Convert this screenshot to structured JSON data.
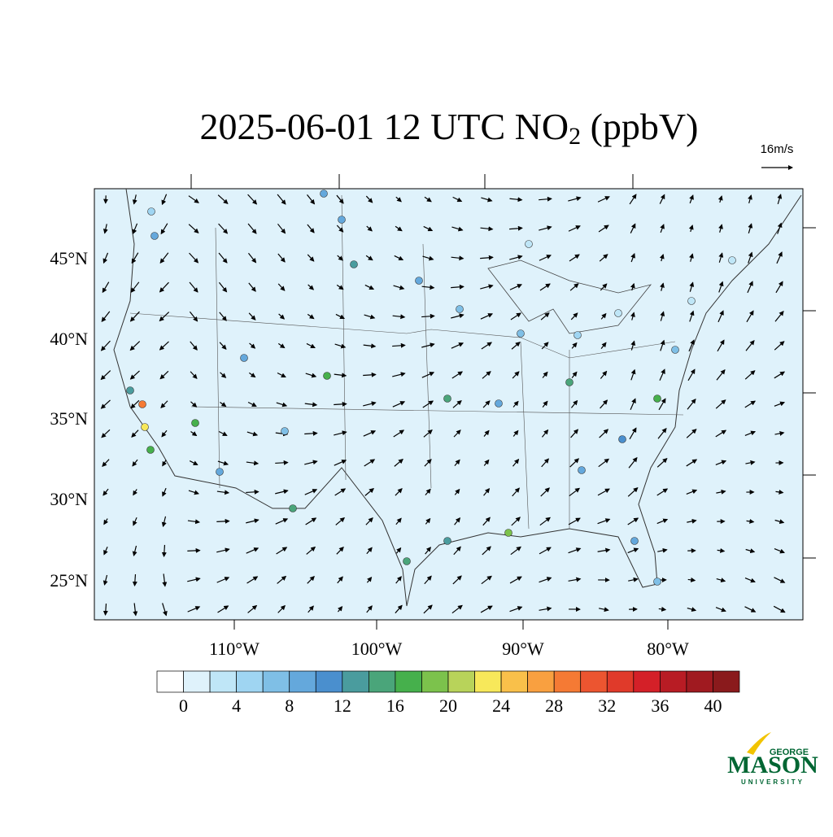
{
  "title": {
    "main": "2025-06-01 12 UTC NO",
    "subscript": "2",
    "unit": " (ppbV)"
  },
  "wind_reference": "16m/s",
  "map": {
    "lat_labels": [
      "45°N",
      "40°N",
      "35°N",
      "30°N",
      "25°N"
    ],
    "lon_labels": [
      "110°W",
      "100°W",
      "90°W",
      "80°W"
    ],
    "background": "#dff2fb"
  },
  "colorbar": {
    "lim": [
      -2,
      42
    ],
    "ticks": [
      0,
      4,
      8,
      12,
      16,
      20,
      24,
      28,
      32,
      36,
      40
    ],
    "colors": [
      "#ffffff",
      "#dff2fb",
      "#bfe6f7",
      "#9fd5f2",
      "#7fbfe6",
      "#64a8dc",
      "#4a8fce",
      "#4a9c9e",
      "#4aa57a",
      "#46b04c",
      "#7cc24c",
      "#b8d35a",
      "#f7e85a",
      "#f9c04a",
      "#f9a040",
      "#f57a34",
      "#ec5530",
      "#e03a2a",
      "#d42028",
      "#b81c24",
      "#a01a20",
      "#8a1a1c"
    ]
  },
  "logo": {
    "top": "GEORGE",
    "main": "MASON",
    "bottom": "UNIVERSITY"
  }
}
